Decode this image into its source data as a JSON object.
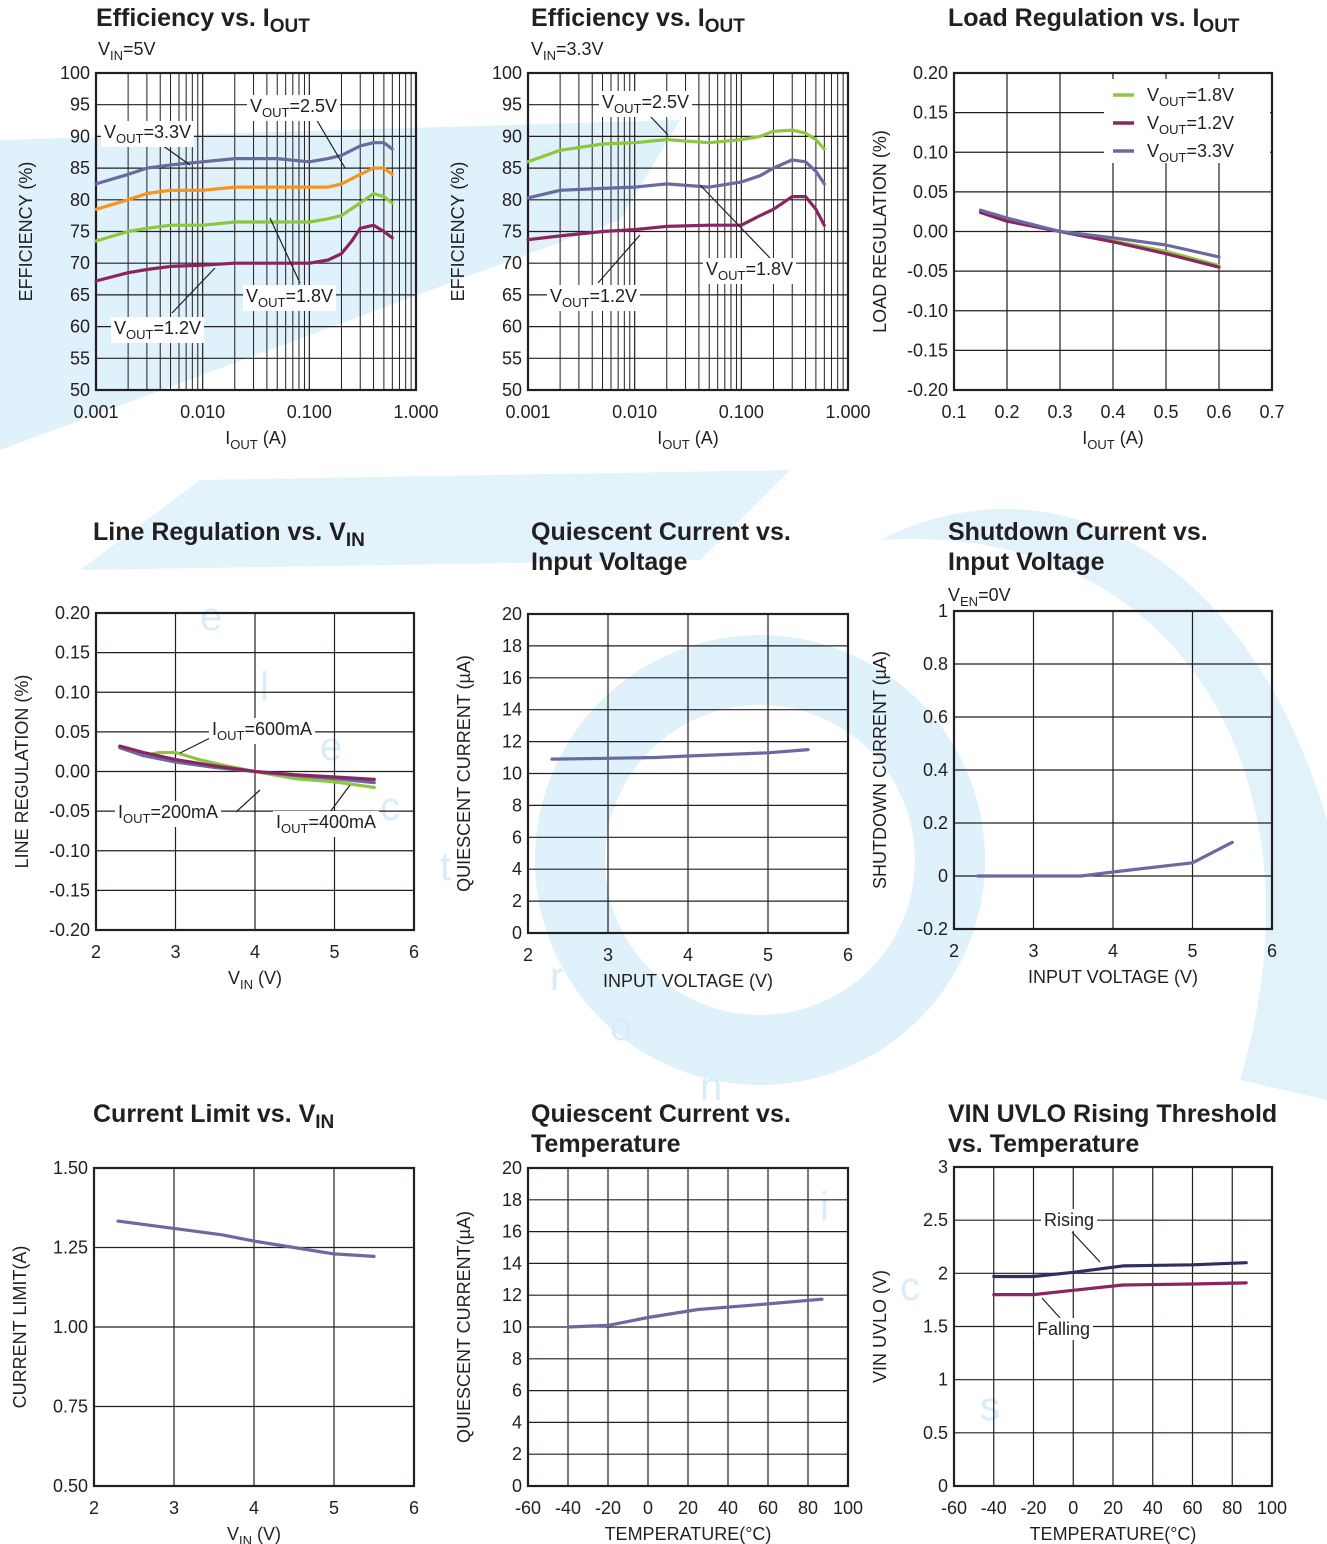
{
  "colors": {
    "green": "#8dc63f",
    "orange": "#f7941d",
    "purple": "#6a6aa0",
    "maroon": "#8b2560",
    "navy": "#2e3060",
    "grid": "#231f20",
    "watermark": "#d7eef9"
  },
  "watermark": {
    "logo_text": "CN",
    "word": "electronics"
  },
  "charts": [
    {
      "id": "eff5",
      "title": "Efficiency vs. I",
      "title_sub": "OUT",
      "title2": "",
      "cond": "V",
      "cond_sub": "IN",
      "cond_rest": "=5V",
      "xlabel": "I",
      "xlabel_sub": "OUT",
      "xlabel_rest": " (A)",
      "ylabel": "EFFICIENCY (%)",
      "xticklabels": [
        "0.001",
        "0.010",
        "0.100",
        "1.000"
      ],
      "yticklabels": [
        "100",
        "95",
        "90",
        "85",
        "80",
        "75",
        "70",
        "65",
        "60",
        "55",
        "50"
      ]
    },
    {
      "id": "eff33",
      "title": "Efficiency vs. I",
      "title_sub": "OUT",
      "title2": "",
      "cond": "V",
      "cond_sub": "IN",
      "cond_rest": "=3.3V",
      "xlabel": "I",
      "xlabel_sub": "OUT",
      "xlabel_rest": " (A)",
      "ylabel": "EFFICIENCY (%)",
      "xticklabels": [
        "0.001",
        "0.010",
        "0.100",
        "1.000"
      ],
      "yticklabels": [
        "100",
        "95",
        "90",
        "85",
        "80",
        "75",
        "70",
        "65",
        "60",
        "55",
        "50"
      ]
    },
    {
      "id": "loadreg",
      "title": "Load Regulation vs. I",
      "title_sub": "OUT",
      "title2": "",
      "cond": "",
      "cond_sub": "",
      "cond_rest": "",
      "xlabel": "I",
      "xlabel_sub": "OUT",
      "xlabel_rest": " (A)",
      "ylabel": "LOAD REGULATION (%)",
      "xticklabels": [
        "0.1",
        "0.2",
        "0.3",
        "0.4",
        "0.5",
        "0.6",
        "0.7"
      ],
      "yticklabels": [
        "0.20",
        "0.15",
        "0.10",
        "0.05",
        "0.00",
        "-0.05",
        "-0.10",
        "-0.15",
        "-0.20"
      ]
    },
    {
      "id": "linereg",
      "title": "Line Regulation vs. V",
      "title_sub": "IN",
      "title2": "",
      "cond": "",
      "cond_sub": "",
      "cond_rest": "",
      "xlabel": "V",
      "xlabel_sub": "IN",
      "xlabel_rest": " (V)",
      "ylabel": "LINE REGULATION (%)",
      "xticklabels": [
        "2",
        "3",
        "4",
        "5",
        "6"
      ],
      "yticklabels": [
        "0.20",
        "0.15",
        "0.10",
        "0.05",
        "0.00",
        "-0.05",
        "-0.10",
        "-0.15",
        "-0.20"
      ]
    },
    {
      "id": "iqvin",
      "title": "Quiescent Current vs.",
      "title_sub": "",
      "title2": "Input Voltage",
      "cond": "",
      "cond_sub": "",
      "cond_rest": "",
      "xlabel": "INPUT VOLTAGE (V)",
      "xlabel_sub": "",
      "xlabel_rest": "",
      "ylabel": "QUIESCENT CURRENT (µA)",
      "xticklabels": [
        "2",
        "3",
        "4",
        "5",
        "6"
      ],
      "yticklabels": [
        "20",
        "18",
        "16",
        "14",
        "12",
        "10",
        "8",
        "6",
        "4",
        "2",
        "0"
      ]
    },
    {
      "id": "isd",
      "title": "Shutdown Current vs.",
      "title_sub": "",
      "title2": "Input Voltage",
      "cond": "V",
      "cond_sub": "EN",
      "cond_rest": "=0V",
      "xlabel": "INPUT VOLTAGE (V)",
      "xlabel_sub": "",
      "xlabel_rest": "",
      "ylabel": "SHUTDOWN CURRENT (µA)",
      "xticklabels": [
        "2",
        "3",
        "4",
        "5",
        "6"
      ],
      "yticklabels": [
        "1",
        "0.8",
        "0.6",
        "0.4",
        "0.2",
        "0",
        "-0.2"
      ]
    },
    {
      "id": "ilim",
      "title": "Current Limit vs. V",
      "title_sub": "IN",
      "title2": "",
      "cond": "",
      "cond_sub": "",
      "cond_rest": "",
      "xlabel": "V",
      "xlabel_sub": "IN",
      "xlabel_rest": " (V)",
      "ylabel": "CURRENT LIMIT(A)",
      "xticklabels": [
        "2",
        "3",
        "4",
        "5",
        "6"
      ],
      "yticklabels": [
        "1.50",
        "1.25",
        "1.00",
        "0.75",
        "0.50"
      ]
    },
    {
      "id": "iqtemp",
      "title": "Quiescent Current vs.",
      "title_sub": "",
      "title2": "Temperature",
      "cond": "",
      "cond_sub": "",
      "cond_rest": "",
      "xlabel": "TEMPERATURE(°C)",
      "xlabel_sub": "",
      "xlabel_rest": "",
      "ylabel": "QUIESCENT CURRENT(µA)",
      "xticklabels": [
        "-60",
        "-40",
        "-20",
        "0",
        "20",
        "40",
        "60",
        "80",
        "100"
      ],
      "yticklabels": [
        "20",
        "18",
        "16",
        "14",
        "12",
        "10",
        "8",
        "6",
        "4",
        "2",
        "0"
      ]
    },
    {
      "id": "uvlo",
      "title": "VIN UVLO Rising Threshold",
      "title_sub": "",
      "title2": "vs. Temperature",
      "cond": "",
      "cond_sub": "",
      "cond_rest": "",
      "xlabel": "TEMPERATURE(°C)",
      "xlabel_sub": "",
      "xlabel_rest": "",
      "ylabel": "VIN UVLO (V)",
      "xticklabels": [
        "-60",
        "-40",
        "-20",
        "0",
        "20",
        "40",
        "60",
        "80",
        "100"
      ],
      "yticklabels": [
        "3",
        "2.5",
        "2",
        "1.5",
        "1",
        "0.5",
        "0"
      ]
    }
  ],
  "chart_data": [
    {
      "id": "eff5",
      "type": "line",
      "xscale": "log",
      "xlim": [
        0.001,
        1
      ],
      "ylim": [
        50,
        100
      ],
      "xlabel": "IOUT (A)",
      "ylabel": "EFFICIENCY (%)",
      "series": [
        {
          "name": "VOUT=3.3V",
          "color": "#6a6aa0",
          "x": [
            0.001,
            0.002,
            0.003,
            0.005,
            0.01,
            0.02,
            0.05,
            0.1,
            0.15,
            0.2,
            0.3,
            0.4,
            0.5,
            0.6
          ],
          "y": [
            82.5,
            84,
            85,
            85.5,
            86,
            86.5,
            86.5,
            86,
            86.5,
            87,
            88.5,
            89,
            89,
            88
          ]
        },
        {
          "name": "VOUT=2.5V",
          "color": "#f7941d",
          "x": [
            0.001,
            0.002,
            0.003,
            0.005,
            0.01,
            0.02,
            0.05,
            0.1,
            0.15,
            0.2,
            0.3,
            0.4,
            0.5,
            0.6
          ],
          "y": [
            78.5,
            80,
            81,
            81.5,
            81.5,
            82,
            82,
            82,
            82,
            82.5,
            84,
            85,
            85,
            84
          ]
        },
        {
          "name": "VOUT=1.8V",
          "color": "#8dc63f",
          "x": [
            0.001,
            0.002,
            0.003,
            0.005,
            0.01,
            0.02,
            0.05,
            0.1,
            0.15,
            0.2,
            0.3,
            0.4,
            0.5,
            0.6
          ],
          "y": [
            73.5,
            75,
            75.5,
            76,
            76,
            76.5,
            76.5,
            76.5,
            77,
            77.5,
            79.5,
            81,
            80.5,
            79.5
          ]
        },
        {
          "name": "VOUT=1.2V",
          "color": "#8b2560",
          "x": [
            0.001,
            0.002,
            0.003,
            0.005,
            0.01,
            0.02,
            0.05,
            0.1,
            0.15,
            0.2,
            0.25,
            0.3,
            0.4,
            0.5,
            0.6
          ],
          "y": [
            67.2,
            68.5,
            69,
            69.5,
            69.7,
            70,
            70,
            70,
            70.5,
            71.5,
            73.5,
            75.5,
            76,
            75,
            74
          ]
        }
      ]
    },
    {
      "id": "eff33",
      "type": "line",
      "xscale": "log",
      "xlim": [
        0.001,
        1
      ],
      "ylim": [
        50,
        100
      ],
      "xlabel": "IOUT (A)",
      "ylabel": "EFFICIENCY (%)",
      "series": [
        {
          "name": "VOUT=2.5V",
          "color": "#8dc63f",
          "x": [
            0.001,
            0.002,
            0.005,
            0.01,
            0.02,
            0.05,
            0.1,
            0.15,
            0.2,
            0.3,
            0.4,
            0.5,
            0.6
          ],
          "y": [
            86,
            87.8,
            88.8,
            89,
            89.5,
            89,
            89.5,
            90,
            90.8,
            91,
            90.5,
            89.5,
            88
          ]
        },
        {
          "name": "VOUT=1.8V",
          "color": "#6a6aa0",
          "x": [
            0.001,
            0.002,
            0.005,
            0.01,
            0.02,
            0.05,
            0.1,
            0.15,
            0.2,
            0.3,
            0.4,
            0.5,
            0.6
          ],
          "y": [
            80.3,
            81.5,
            81.8,
            82,
            82.5,
            82,
            82.8,
            83.8,
            85,
            86.3,
            86,
            84.5,
            82.5
          ]
        },
        {
          "name": "VOUT=1.2V",
          "color": "#8b2560",
          "x": [
            0.001,
            0.002,
            0.005,
            0.01,
            0.02,
            0.05,
            0.1,
            0.15,
            0.2,
            0.3,
            0.4,
            0.5,
            0.6
          ],
          "y": [
            73.7,
            74.3,
            75,
            75.3,
            75.8,
            76,
            76,
            77.5,
            78.5,
            80.5,
            80.5,
            78.5,
            76
          ]
        }
      ]
    },
    {
      "id": "loadreg",
      "type": "line",
      "xlim": [
        0.1,
        0.7
      ],
      "ylim": [
        -0.2,
        0.2
      ],
      "xlabel": "IOUT (A)",
      "ylabel": "LOAD REGULATION (%)",
      "legend": "top-right",
      "series": [
        {
          "name": "VOUT=1.8V",
          "color": "#8dc63f",
          "x": [
            0.15,
            0.2,
            0.3,
            0.4,
            0.5,
            0.6
          ],
          "y": [
            0.025,
            0.015,
            0.0,
            -0.012,
            -0.025,
            -0.043
          ]
        },
        {
          "name": "VOUT=1.2V",
          "color": "#8b2560",
          "x": [
            0.15,
            0.2,
            0.3,
            0.4,
            0.5,
            0.6
          ],
          "y": [
            0.024,
            0.013,
            0.0,
            -0.013,
            -0.028,
            -0.045
          ]
        },
        {
          "name": "VOUT=3.3V",
          "color": "#6a6aa0",
          "x": [
            0.15,
            0.2,
            0.3,
            0.4,
            0.5,
            0.6
          ],
          "y": [
            0.027,
            0.017,
            0.0,
            -0.008,
            -0.017,
            -0.032
          ]
        }
      ]
    },
    {
      "id": "linereg",
      "type": "line",
      "xlim": [
        2,
        6
      ],
      "ylim": [
        -0.2,
        0.2
      ],
      "xlabel": "VIN (V)",
      "ylabel": "LINE REGULATION (%)",
      "series": [
        {
          "name": "IOUT=600mA",
          "color": "#8dc63f",
          "x": [
            2.3,
            2.6,
            2.8,
            3.0,
            3.3,
            3.6,
            4.0,
            4.5,
            5.0,
            5.5
          ],
          "y": [
            0.03,
            0.02,
            0.024,
            0.024,
            0.015,
            0.008,
            0.0,
            -0.009,
            -0.013,
            -0.02
          ]
        },
        {
          "name": "IOUT=200mA",
          "color": "#6a6aa0",
          "x": [
            2.3,
            2.6,
            3.0,
            3.5,
            4.0,
            4.5,
            5.0,
            5.5
          ],
          "y": [
            0.03,
            0.02,
            0.012,
            0.005,
            0.0,
            -0.005,
            -0.009,
            -0.014
          ]
        },
        {
          "name": "IOUT=400mA",
          "color": "#8b2560",
          "x": [
            2.3,
            2.6,
            3.0,
            3.5,
            4.0,
            4.5,
            5.0,
            5.5
          ],
          "y": [
            0.032,
            0.024,
            0.015,
            0.007,
            0.0,
            -0.004,
            -0.007,
            -0.01
          ]
        }
      ]
    },
    {
      "id": "iqvin",
      "type": "line",
      "xlim": [
        2,
        6
      ],
      "ylim": [
        0,
        20
      ],
      "xlabel": "INPUT VOLTAGE (V)",
      "ylabel": "QUIESCENT CURRENT (µA)",
      "series": [
        {
          "name": "",
          "color": "#6a6aa0",
          "x": [
            2.3,
            3.0,
            3.6,
            4.0,
            5.0,
            5.5
          ],
          "y": [
            10.9,
            10.95,
            11.0,
            11.1,
            11.3,
            11.5
          ]
        }
      ]
    },
    {
      "id": "isd",
      "type": "line",
      "xlim": [
        2,
        6
      ],
      "ylim": [
        -0.2,
        1
      ],
      "xlabel": "INPUT VOLTAGE (V)",
      "ylabel": "SHUTDOWN CURRENT (µA)",
      "series": [
        {
          "name": "",
          "color": "#6a6aa0",
          "x": [
            2.3,
            3.0,
            3.6,
            4.0,
            5.0,
            5.5
          ],
          "y": [
            0.0,
            0.0,
            0.0,
            0.015,
            0.05,
            0.127
          ]
        }
      ]
    },
    {
      "id": "ilim",
      "type": "line",
      "xlim": [
        2,
        6
      ],
      "ylim": [
        0.5,
        1.5
      ],
      "xlabel": "VIN (V)",
      "ylabel": "CURRENT LIMIT(A)",
      "series": [
        {
          "name": "",
          "color": "#6a6aa0",
          "x": [
            2.3,
            3.0,
            3.6,
            4.0,
            4.5,
            5.0,
            5.5
          ],
          "y": [
            1.333,
            1.31,
            1.29,
            1.27,
            1.25,
            1.23,
            1.222
          ]
        }
      ]
    },
    {
      "id": "iqtemp",
      "type": "line",
      "xlim": [
        -60,
        100
      ],
      "ylim": [
        0,
        20
      ],
      "xlabel": "TEMPERATURE(°C)",
      "ylabel": "QUIESCENT CURRENT(µA)",
      "series": [
        {
          "name": "",
          "color": "#6a6aa0",
          "x": [
            -40,
            -20,
            0,
            25,
            60,
            87
          ],
          "y": [
            10.0,
            10.1,
            10.6,
            11.1,
            11.45,
            11.75
          ]
        }
      ]
    },
    {
      "id": "uvlo",
      "type": "line",
      "xlim": [
        -60,
        100
      ],
      "ylim": [
        0,
        3
      ],
      "xlabel": "TEMPERATURE(°C)",
      "ylabel": "VIN UVLO (V)",
      "series": [
        {
          "name": "Rising",
          "color": "#2e3060",
          "x": [
            -40,
            -20,
            0,
            25,
            60,
            87
          ],
          "y": [
            1.97,
            1.97,
            2.01,
            2.07,
            2.08,
            2.1
          ]
        },
        {
          "name": "Falling",
          "color": "#8b2560",
          "x": [
            -40,
            -20,
            0,
            25,
            60,
            87
          ],
          "y": [
            1.8,
            1.8,
            1.84,
            1.89,
            1.9,
            1.91
          ]
        }
      ]
    }
  ],
  "annotations": {
    "eff5": [
      {
        "text": "V",
        "sub": "OUT",
        "rest": "=2.5V"
      },
      {
        "text": "V",
        "sub": "OUT",
        "rest": "=3.3V"
      },
      {
        "text": "V",
        "sub": "OUT",
        "rest": "=1.8V"
      },
      {
        "text": "V",
        "sub": "OUT",
        "rest": "=1.2V"
      }
    ],
    "eff33": [
      {
        "text": "V",
        "sub": "OUT",
        "rest": "=2.5V"
      },
      {
        "text": "V",
        "sub": "OUT",
        "rest": "=1.8V"
      },
      {
        "text": "V",
        "sub": "OUT",
        "rest": "=1.2V"
      }
    ],
    "loadreg": [
      {
        "text": "V",
        "sub": "OUT",
        "rest": "=1.8V"
      },
      {
        "text": "V",
        "sub": "OUT",
        "rest": "=1.2V"
      },
      {
        "text": "V",
        "sub": "OUT",
        "rest": "=3.3V"
      }
    ],
    "linereg": [
      {
        "text": "I",
        "sub": "OUT",
        "rest": "=600mA"
      },
      {
        "text": "I",
        "sub": "OUT",
        "rest": "=200mA"
      },
      {
        "text": "I",
        "sub": "OUT",
        "rest": "=400mA"
      }
    ],
    "uvlo": [
      {
        "text": "Rising",
        "sub": "",
        "rest": ""
      },
      {
        "text": "Falling",
        "sub": "",
        "rest": ""
      }
    ]
  }
}
